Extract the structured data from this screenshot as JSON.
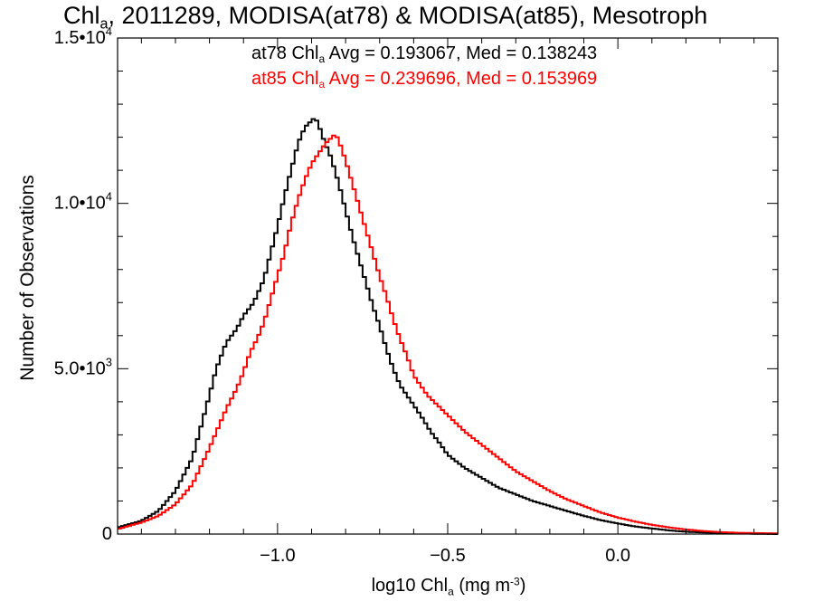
{
  "chart_data": {
    "type": "line",
    "title": {
      "main": "Chl",
      "main_sub": "a",
      "rest": ", 2011289, MODISA(at78) & MODISA(at85), Mesotroph"
    },
    "annotations": [
      {
        "pre": "at78 Chl",
        "sub": "a",
        "post": " Avg = 0.193067, Med = 0.138243",
        "color": "#000000"
      },
      {
        "pre": "at85 Chl",
        "sub": "a",
        "post": " Avg = 0.239696, Med = 0.153969",
        "color": "#ff0000"
      }
    ],
    "xlabel": {
      "pre": "log10 Chl",
      "sub": "a",
      "post": " (mg m",
      "sup": "-3",
      "end": ")"
    },
    "ylabel": "Number of Observations",
    "xlim": [
      -1.47,
      0.47
    ],
    "ylim": [
      0,
      15000
    ],
    "xticks": [
      {
        "v": -1.0,
        "label": "−1.0"
      },
      {
        "v": -0.5,
        "label": "−0.5"
      },
      {
        "v": 0.0,
        "label": "0.0"
      }
    ],
    "yticks": [
      {
        "v": 0,
        "label": "0",
        "exp": ""
      },
      {
        "v": 5000,
        "label": "5.0•10",
        "exp": "3"
      },
      {
        "v": 10000,
        "label": "1.0•10",
        "exp": "4"
      },
      {
        "v": 15000,
        "label": "1.5•10",
        "exp": "4"
      }
    ],
    "series": [
      {
        "name": "at78",
        "color": "#000000",
        "x": [
          -1.47,
          -1.4,
          -1.35,
          -1.3,
          -1.25,
          -1.2,
          -1.18,
          -1.15,
          -1.12,
          -1.1,
          -1.07,
          -1.04,
          -1.02,
          -1.0,
          -0.98,
          -0.96,
          -0.94,
          -0.92,
          -0.9,
          -0.89,
          -0.88,
          -0.87,
          -0.86,
          -0.85,
          -0.84,
          -0.82,
          -0.8,
          -0.78,
          -0.76,
          -0.74,
          -0.72,
          -0.7,
          -0.68,
          -0.66,
          -0.64,
          -0.62,
          -0.6,
          -0.58,
          -0.55,
          -0.52,
          -0.5,
          -0.45,
          -0.4,
          -0.35,
          -0.3,
          -0.25,
          -0.2,
          -0.15,
          -0.1,
          -0.05,
          0.0,
          0.05,
          0.1,
          0.15,
          0.2,
          0.3,
          0.4,
          0.47
        ],
        "y": [
          200,
          400,
          700,
          1300,
          2300,
          4200,
          5000,
          5800,
          6200,
          6600,
          7000,
          7700,
          8500,
          9300,
          10200,
          11000,
          11800,
          12300,
          12500,
          12600,
          12400,
          12100,
          11800,
          11600,
          11300,
          10600,
          9800,
          9000,
          8300,
          7600,
          6900,
          6300,
          5600,
          5000,
          4500,
          4200,
          3900,
          3600,
          3100,
          2700,
          2400,
          2000,
          1700,
          1400,
          1200,
          1000,
          850,
          700,
          550,
          420,
          320,
          230,
          170,
          110,
          70,
          30,
          10,
          0
        ]
      },
      {
        "name": "at85",
        "color": "#ff0000",
        "x": [
          -1.47,
          -1.4,
          -1.35,
          -1.3,
          -1.25,
          -1.2,
          -1.15,
          -1.12,
          -1.1,
          -1.08,
          -1.06,
          -1.04,
          -1.02,
          -1.0,
          -0.98,
          -0.96,
          -0.94,
          -0.92,
          -0.9,
          -0.88,
          -0.86,
          -0.84,
          -0.83,
          -0.82,
          -0.8,
          -0.78,
          -0.76,
          -0.74,
          -0.72,
          -0.7,
          -0.68,
          -0.66,
          -0.64,
          -0.62,
          -0.6,
          -0.58,
          -0.56,
          -0.54,
          -0.52,
          -0.5,
          -0.45,
          -0.4,
          -0.35,
          -0.3,
          -0.25,
          -0.2,
          -0.15,
          -0.1,
          -0.05,
          0.0,
          0.05,
          0.1,
          0.15,
          0.2,
          0.25,
          0.3,
          0.35,
          0.4,
          0.47
        ],
        "y": [
          150,
          350,
          550,
          900,
          1500,
          2600,
          3800,
          4400,
          4900,
          5500,
          5900,
          6400,
          7100,
          7800,
          8500,
          9400,
          10100,
          10700,
          11200,
          11500,
          11800,
          12000,
          12100,
          11900,
          11300,
          10600,
          9900,
          9200,
          8500,
          7800,
          7200,
          6500,
          5900,
          5400,
          4800,
          4500,
          4200,
          4000,
          3800,
          3600,
          3100,
          2700,
          2300,
          1900,
          1600,
          1300,
          1050,
          850,
          650,
          500,
          380,
          280,
          200,
          140,
          90,
          60,
          40,
          30,
          20
        ]
      }
    ]
  }
}
